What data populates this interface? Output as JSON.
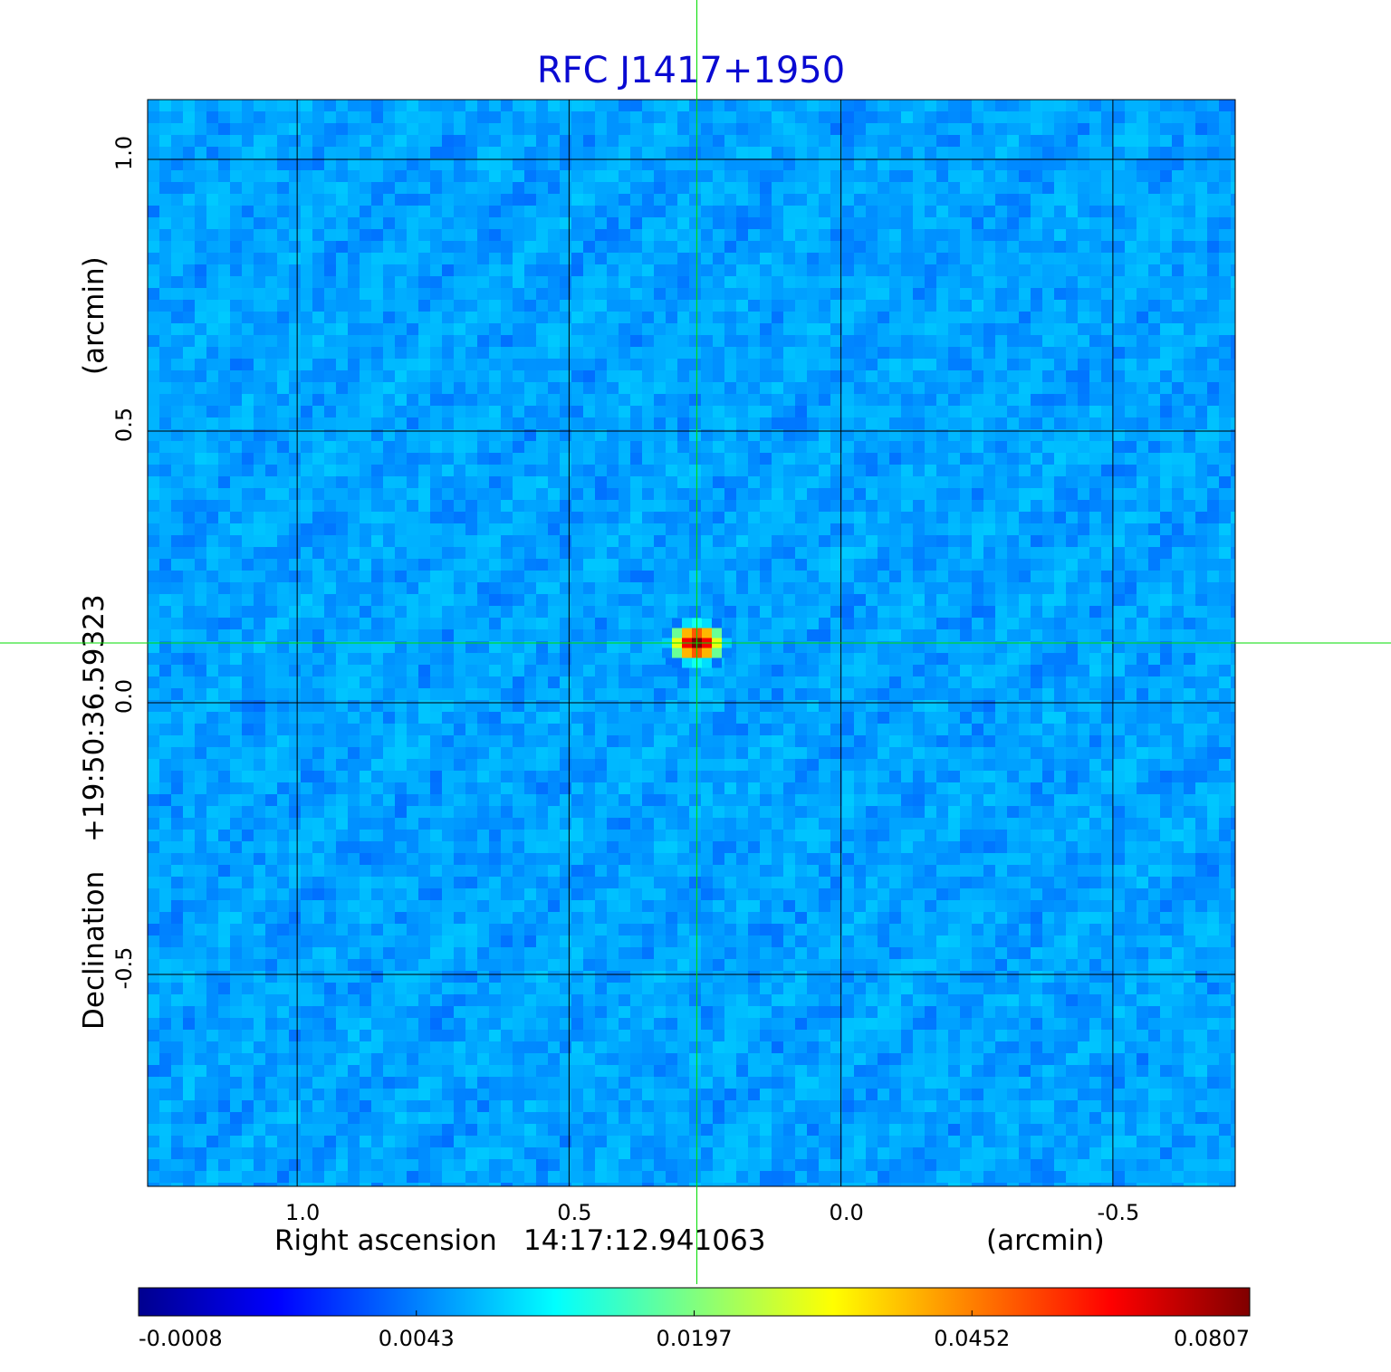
{
  "chart_data": {
    "type": "heatmap",
    "title": "RFC J1417+1950",
    "title_color": "#0a0ad2",
    "colormap": "jet",
    "background_level": 0.0035,
    "grid": true,
    "x_axis": {
      "label_name": "Right ascension",
      "label_center": "14:17:12.941063",
      "label_unit": "(arcmin)",
      "ticks": [
        1.0,
        0.5,
        0.0,
        -0.5
      ],
      "tick_labels": [
        "1.0",
        "0.5",
        "0.0",
        "-0.5"
      ],
      "lim": [
        1.275,
        -0.725
      ],
      "direction": "decreasing"
    },
    "y_axis": {
      "label_name": "Declination",
      "label_center": "+19:50:36.59323",
      "label_unit": "(arcmin)",
      "ticks": [
        1.0,
        0.5,
        0.0,
        -0.5
      ],
      "tick_labels": [
        "1.0",
        "0.5",
        "0.0",
        "-0.5"
      ],
      "lim": [
        -0.89,
        1.11
      ]
    },
    "source": {
      "x": 0.265,
      "y": 0.11,
      "peak": 0.0807
    },
    "crosshair": {
      "x": 0.265,
      "y": 0.11,
      "color": "#00dd00"
    },
    "colorbar": {
      "ticks": [
        -0.0008,
        0.0043,
        0.0197,
        0.0452,
        0.0807
      ],
      "tick_labels": [
        "-0.0008",
        "0.0043",
        "0.0197",
        "0.0452",
        "0.0807"
      ]
    }
  }
}
